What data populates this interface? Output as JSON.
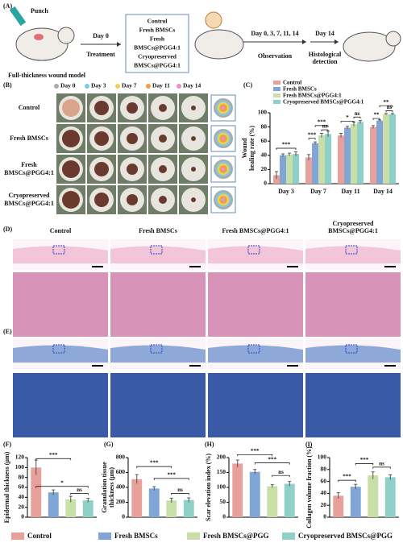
{
  "panel_labels": [
    "(A)",
    "(B)",
    "(C)",
    "(D)",
    "(E)",
    "(F)",
    "(G)",
    "(H)",
    "(I)"
  ],
  "panel_a": {
    "punch": "Punch",
    "model": "Full-thickness wound model",
    "day0": "Day 0",
    "treatment": "Treatment",
    "groups": [
      "Control",
      "Fresh BMSCs",
      "Fresh",
      "BMSCs@PGG4:1",
      "Cryopreserved",
      "BMSCs@PGG4:1"
    ],
    "days": "Day 0, 3, 7, 11, 14",
    "observation": "Observation",
    "day14": "Day 14",
    "histology": [
      "Histological",
      "detection"
    ]
  },
  "panel_b": {
    "days": [
      {
        "label": "Day 0",
        "color": "#aaaaaa"
      },
      {
        "label": "Day 3",
        "color": "#7fc8e8"
      },
      {
        "label": "Day 7",
        "color": "#f0d24a"
      },
      {
        "label": "Day 11",
        "color": "#f0a040"
      },
      {
        "label": "Day 14",
        "color": "#e890c8"
      }
    ],
    "rows": [
      [
        "Control"
      ],
      [
        "Fresh BMSCs"
      ],
      [
        "Fresh",
        "BMSCs@PGG4:1"
      ],
      [
        "Cryopreserved",
        "BMSCs@PGG4:1"
      ]
    ]
  },
  "histology_columns": [
    [
      "Control"
    ],
    [
      "Fresh BMSCs"
    ],
    [
      "Fresh BMSCs@PGG4:1"
    ],
    [
      "Cryopreserved",
      "BMSCs@PGG4:1"
    ]
  ],
  "chart_data": [
    {
      "type": "bar",
      "ylabel": [
        "Wound",
        "healing rate (%)"
      ],
      "categories": [
        "Day 3",
        "Day 7",
        "Day 11",
        "Day 14"
      ],
      "series": [
        {
          "name": "Control",
          "color": "#e8a09a",
          "values": [
            12,
            37,
            68,
            80
          ],
          "errors": [
            5,
            4,
            3,
            2
          ]
        },
        {
          "name": "Fresh BMSCs",
          "color": "#7fa6d6",
          "values": [
            40,
            57,
            79,
            89
          ],
          "errors": [
            2,
            2,
            2,
            1
          ]
        },
        {
          "name": "Fresh BMSCs@PGG4:1",
          "color": "#c8e0a8",
          "values": [
            41,
            68,
            84,
            98
          ],
          "errors": [
            2,
            3,
            3,
            1
          ]
        },
        {
          "name": "Cryopreserved BMSCs@PGG4:1",
          "color": "#8fd0c8",
          "values": [
            42,
            70,
            87,
            98
          ],
          "errors": [
            3,
            4,
            2,
            1
          ]
        }
      ],
      "ylim": [
        0,
        100
      ],
      "yticks": [
        0,
        20,
        40,
        60,
        80,
        100
      ],
      "annotations": [
        "***",
        "***",
        "***",
        "ns",
        "*",
        "ns",
        "**",
        "**",
        "ns"
      ]
    },
    {
      "type": "bar",
      "ylabel": [
        "Epidermal thickness (μm)"
      ],
      "values": [
        100,
        50,
        36,
        34
      ],
      "errors": [
        15,
        5,
        6,
        4
      ],
      "colors": [
        "#e8a09a",
        "#7fa6d6",
        "#c8e0a8",
        "#8fd0c8"
      ],
      "ylim": [
        0,
        120
      ],
      "yticks": [
        0,
        20,
        40,
        60,
        80,
        100,
        120
      ],
      "annotations": [
        "***",
        "*",
        "ns"
      ]
    },
    {
      "type": "bar",
      "ylabel": [
        "Granulation tissue",
        "thickness (μm)"
      ],
      "values": [
        510,
        385,
        225,
        230
      ],
      "errors": [
        60,
        25,
        30,
        30
      ],
      "colors": [
        "#e8a09a",
        "#7fa6d6",
        "#c8e0a8",
        "#8fd0c8"
      ],
      "ylim": [
        0,
        800
      ],
      "yticks": [
        0,
        200,
        400,
        600,
        800
      ],
      "annotations": [
        "***",
        "***",
        "ns"
      ]
    },
    {
      "type": "bar",
      "ylabel": [
        "Scar elevation index (%)"
      ],
      "values": [
        180,
        152,
        104,
        112
      ],
      "errors": [
        12,
        8,
        5,
        8
      ],
      "colors": [
        "#e8a09a",
        "#7fa6d6",
        "#c8e0a8",
        "#8fd0c8"
      ],
      "ylim": [
        0,
        200
      ],
      "yticks": [
        0,
        50,
        100,
        150,
        200
      ],
      "annotations": [
        "***",
        "***",
        "ns"
      ]
    },
    {
      "type": "bar",
      "ylabel": [
        "Collagen volume fraction (%)"
      ],
      "values": [
        36,
        51,
        70,
        67
      ],
      "errors": [
        5,
        4,
        6,
        4
      ],
      "colors": [
        "#e8a09a",
        "#7fa6d6",
        "#c8e0a8",
        "#8fd0c8"
      ],
      "ylim": [
        0,
        100
      ],
      "yticks": [
        0,
        20,
        40,
        60,
        80,
        100
      ],
      "annotations": [
        "***",
        "***",
        "ns"
      ]
    }
  ],
  "legend": [
    {
      "name": "Control",
      "color": "#e8a09a"
    },
    {
      "name": "Fresh BMSCs",
      "color": "#7fa6d6"
    },
    {
      "name": "Fresh BMSCs@PGG",
      "color": "#c8e0a8"
    },
    {
      "name": "Cryopreserved BMSCs@PGG",
      "color": "#8fd0c8"
    }
  ]
}
